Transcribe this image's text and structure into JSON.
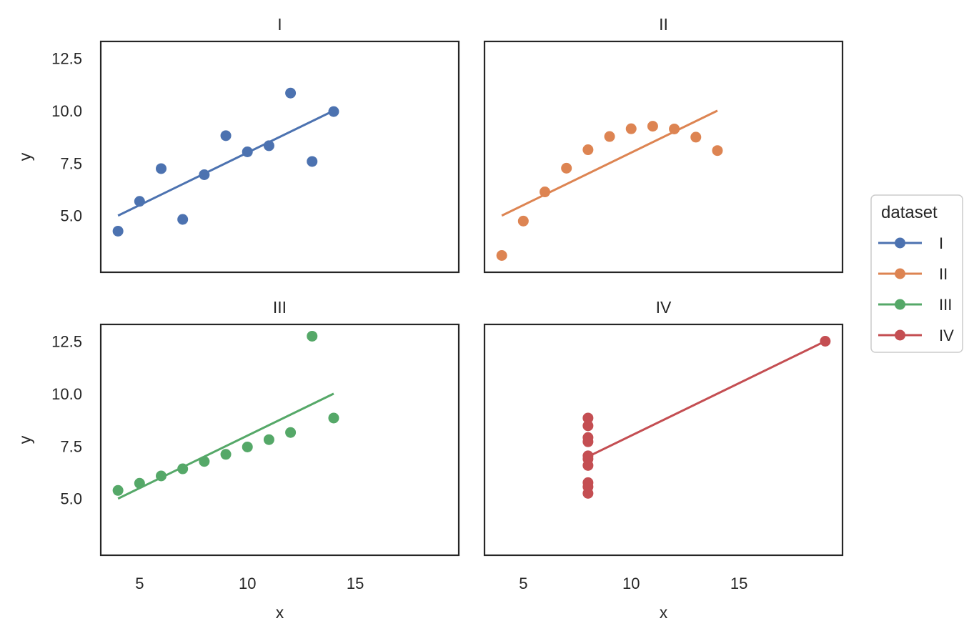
{
  "chart_data": {
    "type": "scatter",
    "xlabel": "x",
    "ylabel": "y",
    "xlim": [
      3.2,
      19.8
    ],
    "ylim": [
      2.3,
      13.3
    ],
    "x_ticks": [
      5,
      10,
      15
    ],
    "y_ticks": [
      5.0,
      7.5,
      10.0,
      12.5
    ],
    "x_tick_labels": [
      "5",
      "10",
      "15"
    ],
    "y_tick_labels": [
      "5.0",
      "7.5",
      "10.0",
      "12.5"
    ],
    "grid": false,
    "legend": {
      "title": "dataset",
      "placement": "right",
      "entries": [
        "I",
        "II",
        "III",
        "IV"
      ]
    },
    "panels": [
      {
        "title": "I",
        "color": "#4c72b0",
        "points": [
          [
            10,
            8.04
          ],
          [
            8,
            6.95
          ],
          [
            13,
            7.58
          ],
          [
            9,
            8.81
          ],
          [
            11,
            8.33
          ],
          [
            14,
            9.96
          ],
          [
            6,
            7.24
          ],
          [
            4,
            4.26
          ],
          [
            12,
            10.84
          ],
          [
            7,
            4.82
          ],
          [
            5,
            5.68
          ]
        ],
        "fit": [
          [
            4,
            5.0
          ],
          [
            14,
            10.0
          ]
        ]
      },
      {
        "title": "II",
        "color": "#dd8452",
        "points": [
          [
            10,
            9.14
          ],
          [
            8,
            8.14
          ],
          [
            13,
            8.74
          ],
          [
            9,
            8.77
          ],
          [
            11,
            9.26
          ],
          [
            14,
            8.1
          ],
          [
            6,
            6.13
          ],
          [
            4,
            3.1
          ],
          [
            12,
            9.13
          ],
          [
            7,
            7.26
          ],
          [
            5,
            4.74
          ]
        ],
        "fit": [
          [
            4,
            5.0
          ],
          [
            14,
            10.0
          ]
        ]
      },
      {
        "title": "III",
        "color": "#55a868",
        "points": [
          [
            10,
            7.46
          ],
          [
            8,
            6.77
          ],
          [
            13,
            12.74
          ],
          [
            9,
            7.11
          ],
          [
            11,
            7.81
          ],
          [
            14,
            8.84
          ],
          [
            6,
            6.08
          ],
          [
            4,
            5.39
          ],
          [
            12,
            8.15
          ],
          [
            7,
            6.42
          ],
          [
            5,
            5.73
          ]
        ],
        "fit": [
          [
            4,
            5.0
          ],
          [
            14,
            10.0
          ]
        ]
      },
      {
        "title": "IV",
        "color": "#c44e52",
        "points": [
          [
            8,
            6.58
          ],
          [
            8,
            5.76
          ],
          [
            8,
            7.71
          ],
          [
            8,
            8.84
          ],
          [
            8,
            8.47
          ],
          [
            8,
            7.04
          ],
          [
            8,
            5.25
          ],
          [
            19,
            12.5
          ],
          [
            8,
            5.56
          ],
          [
            8,
            7.91
          ],
          [
            8,
            6.89
          ]
        ],
        "fit": [
          [
            8,
            7.0
          ],
          [
            19,
            12.5
          ]
        ]
      }
    ]
  }
}
